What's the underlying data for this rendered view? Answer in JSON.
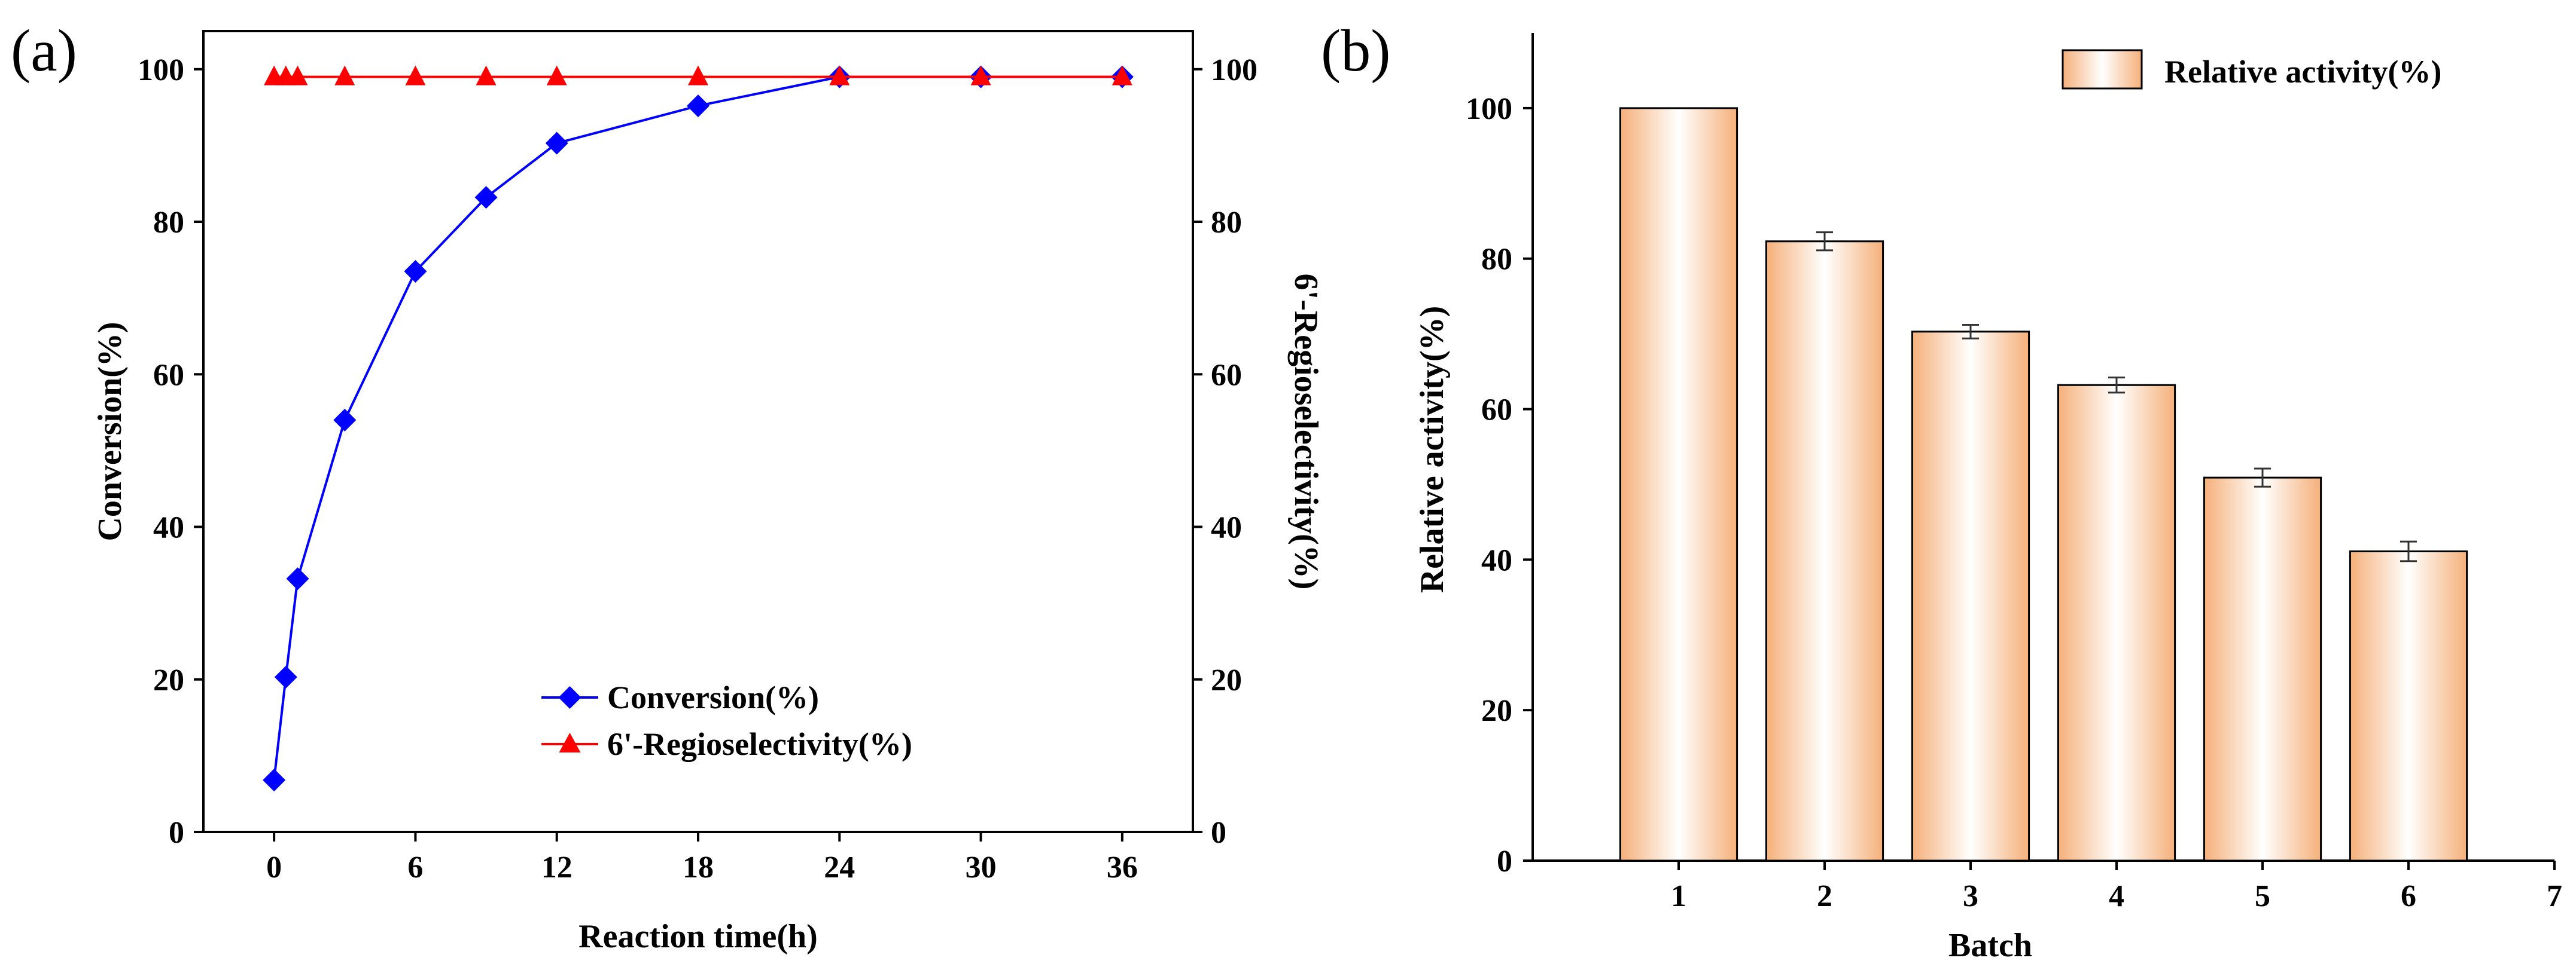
{
  "chart_data": [
    {
      "panel_label": "(a)",
      "type": "line",
      "xlabel": "Reaction time(h)",
      "ylabel": "Conversion(%)",
      "y2label": "6'-Regioselectivity(%)",
      "xlim": [
        -3,
        39
      ],
      "ylim": [
        0,
        105
      ],
      "y2lim": [
        0,
        105
      ],
      "xticks": [
        0,
        6,
        12,
        18,
        24,
        30,
        36
      ],
      "yticks": [
        0,
        20,
        40,
        60,
        80,
        100
      ],
      "y2ticks": [
        0,
        20,
        40,
        60,
        80,
        100
      ],
      "legend_position": "lower-right",
      "series": [
        {
          "name": "Conversion(%)",
          "axis": "left",
          "color": "#0000ff",
          "marker": "diamond",
          "x": [
            0,
            0.5,
            1,
            3,
            6,
            9,
            12,
            18,
            24,
            30,
            36
          ],
          "values": [
            6.8,
            20.3,
            33.2,
            54.0,
            73.5,
            83.2,
            90.3,
            95.2,
            99.0,
            99.0,
            99.0
          ]
        },
        {
          "name": "6'-Regioselectivity(%)",
          "axis": "right",
          "color": "#ff0000",
          "marker": "triangle",
          "x": [
            0,
            0.5,
            1,
            3,
            6,
            9,
            12,
            18,
            24,
            30,
            36
          ],
          "values": [
            99,
            99,
            99,
            99,
            99,
            99,
            99,
            99,
            99,
            99,
            99
          ]
        }
      ]
    },
    {
      "panel_label": "(b)",
      "type": "bar",
      "xlabel": "Batch",
      "ylabel": "Relative activity(%)",
      "xlim": [
        0,
        7
      ],
      "ylim": [
        0,
        110
      ],
      "xticks": [
        1,
        2,
        3,
        4,
        5,
        6,
        7
      ],
      "yticks": [
        0,
        20,
        40,
        60,
        80,
        100
      ],
      "legend_position": "top-right",
      "bar_color": "#f5b07a",
      "series": [
        {
          "name": "Relative activity(%)",
          "categories": [
            1,
            2,
            3,
            4,
            5,
            6
          ],
          "values": [
            100,
            82.3,
            70.3,
            63.2,
            50.9,
            41.1
          ],
          "errors": [
            0,
            1.2,
            0.9,
            1.0,
            1.2,
            1.3
          ]
        }
      ]
    }
  ]
}
